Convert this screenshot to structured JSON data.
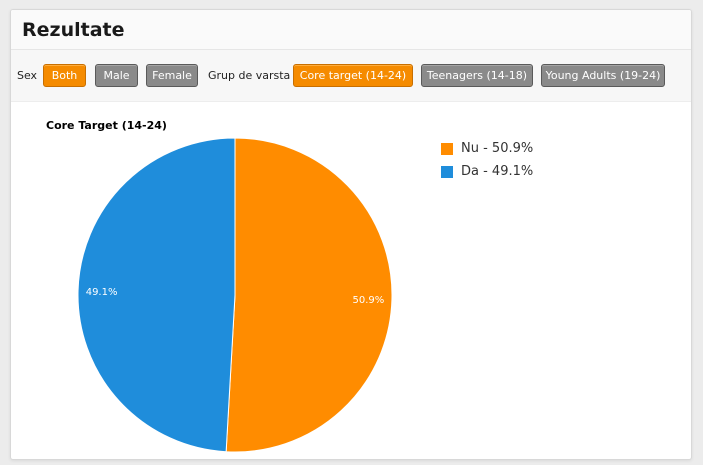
{
  "header": {
    "title": "Rezultate"
  },
  "filters": {
    "sex_label": "Sex",
    "sex_options": [
      {
        "label": "Both",
        "active": true
      },
      {
        "label": "Male",
        "active": false
      },
      {
        "label": "Female",
        "active": false
      }
    ],
    "age_label": "Grup de varsta",
    "age_options": [
      {
        "label": "Core target (14-24)",
        "active": true
      },
      {
        "label": "Teenagers (14-18)",
        "active": false
      },
      {
        "label": "Young Adults (19-24)",
        "active": false
      }
    ]
  },
  "colors": {
    "accent": "#f58b00",
    "inactive_button": "#8a8a8a",
    "series_blue": "#1f8ddb",
    "series_orange": "#ff8c00"
  },
  "chart_data": {
    "type": "pie",
    "title": "Core Target (14-24)",
    "slices": [
      {
        "name": "Nu",
        "value": 50.9,
        "label": "50.9%",
        "legend": "Nu - 50.9%",
        "color": "#ff8c00"
      },
      {
        "name": "Da",
        "value": 49.1,
        "label": "49.1%",
        "legend": "Da - 49.1%",
        "color": "#1f8ddb"
      }
    ],
    "legend_position": "top-right"
  }
}
